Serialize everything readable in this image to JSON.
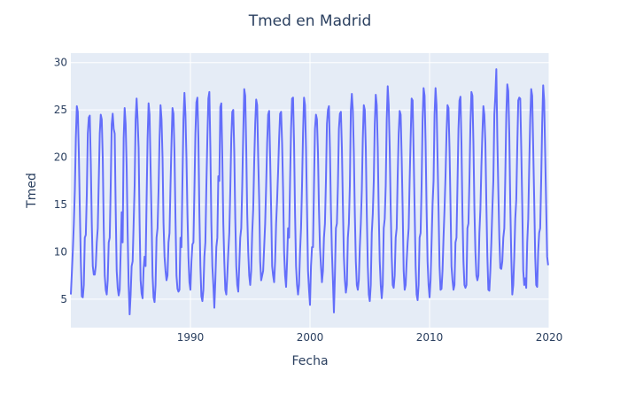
{
  "chart_data": {
    "type": "line",
    "title": "Tmed en Madrid",
    "xlabel": "Fecha",
    "ylabel": "Tmed",
    "x_range": [
      1980.0,
      2020.0
    ],
    "ylim": [
      2.0,
      31.0
    ],
    "x_ticks": [
      1990,
      2000,
      2010,
      2020
    ],
    "y_ticks": [
      5,
      10,
      15,
      20,
      25,
      30
    ],
    "grid": true,
    "legend": "none",
    "colors": {
      "line": "#636efa",
      "plot_background": "#e5ecf6",
      "grid": "#ffffff",
      "text": "#2a3f5f"
    },
    "series": [
      {
        "x": [
          1980.0,
          1980.0833,
          1980.1667,
          1980.25,
          1980.3333,
          1980.4167,
          1980.5,
          1980.5833,
          1980.6667,
          1980.75,
          1980.8333,
          1980.9167,
          1981.0,
          1981.0833,
          1981.1667,
          1981.25,
          1981.3333,
          1981.4167,
          1981.5,
          1981.5833,
          1981.6667,
          1981.75,
          1981.8333,
          1981.9167,
          1982.0,
          1982.0833,
          1982.1667,
          1982.25,
          1982.3333,
          1982.4167,
          1982.5,
          1982.5833,
          1982.6667,
          1982.75,
          1982.8333,
          1982.9167,
          1983.0,
          1983.0833,
          1983.1667,
          1983.25,
          1983.3333,
          1983.4167,
          1983.5,
          1983.5833,
          1983.6667,
          1983.75,
          1983.8333,
          1983.9167,
          1984.0,
          1984.0833,
          1984.1667,
          1984.25,
          1984.3333,
          1984.4167,
          1984.5,
          1984.5833,
          1984.6667,
          1984.75,
          1984.8333,
          1984.9167,
          1985.0,
          1985.0833,
          1985.1667,
          1985.25,
          1985.3333,
          1985.4167,
          1985.5,
          1985.5833,
          1985.6667,
          1985.75,
          1985.8333,
          1985.9167,
          1986.0,
          1986.0833,
          1986.1667,
          1986.25,
          1986.3333,
          1986.4167,
          1986.5,
          1986.5833,
          1986.6667,
          1986.75,
          1986.8333,
          1986.9167,
          1987.0,
          1987.0833,
          1987.1667,
          1987.25,
          1987.3333,
          1987.4167,
          1987.5,
          1987.5833,
          1987.6667,
          1987.75,
          1987.8333,
          1987.9167,
          1988.0,
          1988.0833,
          1988.1667,
          1988.25,
          1988.3333,
          1988.4167,
          1988.5,
          1988.5833,
          1988.6667,
          1988.75,
          1988.8333,
          1988.9167,
          1989.0,
          1989.0833,
          1989.1667,
          1989.25,
          1989.3333,
          1989.4167,
          1989.5,
          1989.5833,
          1989.6667,
          1989.75,
          1989.8333,
          1989.9167,
          1990.0,
          1990.0833,
          1990.1667,
          1990.25,
          1990.3333,
          1990.4167,
          1990.5,
          1990.5833,
          1990.6667,
          1990.75,
          1990.8333,
          1990.9167,
          1991.0,
          1991.0833,
          1991.1667,
          1991.25,
          1991.3333,
          1991.4167,
          1991.5,
          1991.5833,
          1991.6667,
          1991.75,
          1991.8333,
          1991.9167,
          1992.0,
          1992.0833,
          1992.1667,
          1992.25,
          1992.3333,
          1992.4167,
          1992.5,
          1992.5833,
          1992.6667,
          1992.75,
          1992.8333,
          1992.9167,
          1993.0,
          1993.0833,
          1993.1667,
          1993.25,
          1993.3333,
          1993.4167,
          1993.5,
          1993.5833,
          1993.6667,
          1993.75,
          1993.8333,
          1993.9167,
          1994.0,
          1994.0833,
          1994.1667,
          1994.25,
          1994.3333,
          1994.4167,
          1994.5,
          1994.5833,
          1994.6667,
          1994.75,
          1994.8333,
          1994.9167,
          1995.0,
          1995.0833,
          1995.1667,
          1995.25,
          1995.3333,
          1995.4167,
          1995.5,
          1995.5833,
          1995.6667,
          1995.75,
          1995.8333,
          1995.9167,
          1996.0,
          1996.0833,
          1996.1667,
          1996.25,
          1996.3333,
          1996.4167,
          1996.5,
          1996.5833,
          1996.6667,
          1996.75,
          1996.8333,
          1996.9167,
          1997.0,
          1997.0833,
          1997.1667,
          1997.25,
          1997.3333,
          1997.4167,
          1997.5,
          1997.5833,
          1997.6667,
          1997.75,
          1997.8333,
          1997.9167,
          1998.0,
          1998.0833,
          1998.1667,
          1998.25,
          1998.3333,
          1998.4167,
          1998.5,
          1998.5833,
          1998.6667,
          1998.75,
          1998.8333,
          1998.9167,
          1999.0,
          1999.0833,
          1999.1667,
          1999.25,
          1999.3333,
          1999.4167,
          1999.5,
          1999.5833,
          1999.6667,
          1999.75,
          1999.8333,
          1999.9167,
          2000.0,
          2000.0833,
          2000.1667,
          2000.25,
          2000.3333,
          2000.4167,
          2000.5,
          2000.5833,
          2000.6667,
          2000.75,
          2000.8333,
          2000.9167,
          2001.0,
          2001.0833,
          2001.1667,
          2001.25,
          2001.3333,
          2001.4167,
          2001.5,
          2001.5833,
          2001.6667,
          2001.75,
          2001.8333,
          2001.9167,
          2002.0,
          2002.0833,
          2002.1667,
          2002.25,
          2002.3333,
          2002.4167,
          2002.5,
          2002.5833,
          2002.6667,
          2002.75,
          2002.8333,
          2002.9167,
          2003.0,
          2003.0833,
          2003.1667,
          2003.25,
          2003.3333,
          2003.4167,
          2003.5,
          2003.5833,
          2003.6667,
          2003.75,
          2003.8333,
          2003.9167,
          2004.0,
          2004.0833,
          2004.1667,
          2004.25,
          2004.3333,
          2004.4167,
          2004.5,
          2004.5833,
          2004.6667,
          2004.75,
          2004.8333,
          2004.9167,
          2005.0,
          2005.0833,
          2005.1667,
          2005.25,
          2005.3333,
          2005.4167,
          2005.5,
          2005.5833,
          2005.6667,
          2005.75,
          2005.8333,
          2005.9167,
          2006.0,
          2006.0833,
          2006.1667,
          2006.25,
          2006.3333,
          2006.4167,
          2006.5,
          2006.5833,
          2006.6667,
          2006.75,
          2006.8333,
          2006.9167,
          2007.0,
          2007.0833,
          2007.1667,
          2007.25,
          2007.3333,
          2007.4167,
          2007.5,
          2007.5833,
          2007.6667,
          2007.75,
          2007.8333,
          2007.9167,
          2008.0,
          2008.0833,
          2008.1667,
          2008.25,
          2008.3333,
          2008.4167,
          2008.5,
          2008.5833,
          2008.6667,
          2008.75,
          2008.8333,
          2008.9167,
          2009.0,
          2009.0833,
          2009.1667,
          2009.25,
          2009.3333,
          2009.4167,
          2009.5,
          2009.5833,
          2009.6667,
          2009.75,
          2009.8333,
          2009.9167,
          2010.0,
          2010.0833,
          2010.1667,
          2010.25,
          2010.3333,
          2010.4167,
          2010.5,
          2010.5833,
          2010.6667,
          2010.75,
          2010.8333,
          2010.9167,
          2011.0,
          2011.0833,
          2011.1667,
          2011.25,
          2011.3333,
          2011.4167,
          2011.5,
          2011.5833,
          2011.6667,
          2011.75,
          2011.8333,
          2011.9167,
          2012.0,
          2012.0833,
          2012.1667,
          2012.25,
          2012.3333,
          2012.4167,
          2012.5,
          2012.5833,
          2012.6667,
          2012.75,
          2012.8333,
          2012.9167,
          2013.0,
          2013.0833,
          2013.1667,
          2013.25,
          2013.3333,
          2013.4167,
          2013.5,
          2013.5833,
          2013.6667,
          2013.75,
          2013.8333,
          2013.9167,
          2014.0,
          2014.0833,
          2014.1667,
          2014.25,
          2014.3333,
          2014.4167,
          2014.5,
          2014.5833,
          2014.6667,
          2014.75,
          2014.8333,
          2014.9167,
          2015.0,
          2015.0833,
          2015.1667,
          2015.25,
          2015.3333,
          2015.4167,
          2015.5,
          2015.5833,
          2015.6667,
          2015.75,
          2015.8333,
          2015.9167,
          2016.0,
          2016.0833,
          2016.1667,
          2016.25,
          2016.3333,
          2016.4167,
          2016.5,
          2016.5833,
          2016.6667,
          2016.75,
          2016.8333,
          2016.9167,
          2017.0,
          2017.0833,
          2017.1667,
          2017.25,
          2017.3333,
          2017.4167,
          2017.5,
          2017.5833,
          2017.6667,
          2017.75,
          2017.8333,
          2017.9167,
          2018.0,
          2018.0833,
          2018.1667,
          2018.25,
          2018.3333,
          2018.4167,
          2018.5,
          2018.5833,
          2018.6667,
          2018.75,
          2018.8333,
          2018.9167,
          2019.0,
          2019.0833,
          2019.1667,
          2019.25,
          2019.3333,
          2019.4167,
          2019.5,
          2019.5833,
          2019.6667,
          2019.75,
          2019.8333,
          2019.9167
        ],
        "y": [
          5.5,
          7.8,
          10.2,
          13.0,
          16.5,
          22.0,
          25.4,
          24.8,
          20.5,
          14.5,
          9.0,
          5.3,
          5.2,
          6.5,
          11.5,
          11.8,
          16.0,
          22.5,
          24.2,
          24.4,
          19.5,
          13.0,
          8.5,
          7.6,
          7.6,
          8.5,
          11.0,
          12.5,
          17.5,
          22.5,
          24.5,
          24.0,
          20.0,
          12.5,
          7.5,
          6.0,
          5.5,
          7.0,
          11.0,
          11.5,
          17.0,
          23.5,
          24.6,
          23.0,
          22.5,
          14.5,
          8.0,
          6.2,
          5.4,
          6.0,
          10.0,
          14.2,
          11.0,
          22.0,
          25.2,
          23.5,
          19.0,
          12.0,
          6.5,
          3.4,
          5.5,
          8.5,
          9.0,
          13.0,
          17.0,
          24.0,
          26.2,
          24.0,
          21.0,
          13.0,
          7.0,
          5.6,
          5.1,
          8.2,
          9.5,
          8.5,
          15.5,
          22.0,
          25.7,
          24.5,
          19.0,
          13.5,
          7.5,
          5.2,
          4.7,
          6.5,
          11.5,
          12.5,
          16.5,
          22.0,
          25.5,
          24.0,
          20.0,
          13.0,
          9.5,
          8.0,
          7.0,
          7.5,
          11.0,
          12.0,
          17.0,
          21.5,
          25.2,
          24.6,
          20.5,
          13.5,
          7.5,
          6.1,
          5.8,
          6.0,
          11.5,
          10.5,
          17.5,
          24.0,
          26.8,
          24.5,
          20.0,
          14.0,
          9.5,
          6.8,
          6.0,
          9.0,
          10.8,
          11.0,
          16.5,
          22.5,
          25.8,
          26.3,
          22.0,
          14.0,
          8.5,
          5.3,
          4.8,
          6.0,
          9.5,
          11.0,
          17.0,
          22.0,
          26.2,
          26.9,
          21.0,
          13.0,
          8.5,
          6.5,
          4.1,
          7.0,
          10.5,
          11.5,
          18.0,
          17.5,
          25.3,
          25.7,
          20.0,
          13.0,
          9.0,
          6.0,
          5.5,
          7.5,
          10.0,
          12.0,
          16.5,
          22.0,
          24.8,
          25.0,
          20.5,
          13.5,
          8.5,
          6.5,
          5.8,
          8.5,
          11.5,
          12.5,
          17.0,
          22.5,
          27.2,
          26.5,
          21.0,
          14.0,
          10.0,
          7.5,
          6.5,
          8.0,
          12.0,
          14.5,
          19.5,
          23.5,
          26.1,
          25.5,
          20.0,
          15.5,
          9.0,
          7.0,
          7.5,
          8.0,
          10.5,
          13.0,
          17.0,
          21.5,
          24.5,
          24.9,
          20.0,
          14.5,
          8.5,
          7.5,
          6.8,
          9.0,
          13.0,
          15.5,
          18.5,
          22.0,
          24.6,
          24.8,
          21.5,
          16.5,
          10.0,
          7.5,
          6.3,
          9.0,
          12.5,
          11.5,
          17.5,
          23.0,
          26.2,
          26.3,
          21.5,
          14.0,
          8.5,
          6.5,
          5.5,
          6.5,
          10.0,
          12.5,
          17.0,
          22.5,
          26.3,
          25.5,
          21.0,
          14.5,
          8.0,
          6.0,
          4.4,
          8.5,
          10.5,
          10.5,
          17.0,
          23.0,
          24.5,
          24.0,
          20.5,
          14.5,
          10.5,
          8.5,
          6.8,
          8.0,
          11.5,
          13.0,
          17.5,
          23.5,
          25.0,
          25.4,
          21.0,
          14.5,
          10.0,
          7.0,
          3.6,
          7.5,
          12.5,
          13.0,
          17.0,
          23.0,
          24.6,
          24.8,
          21.0,
          15.0,
          9.5,
          7.0,
          5.7,
          6.5,
          11.5,
          13.0,
          17.0,
          25.0,
          26.7,
          25.0,
          20.5,
          14.0,
          9.0,
          6.5,
          6.0,
          7.0,
          10.5,
          13.0,
          16.5,
          22.0,
          25.5,
          25.0,
          21.0,
          14.0,
          8.5,
          5.5,
          4.8,
          6.5,
          12.0,
          14.0,
          17.5,
          23.5,
          26.6,
          25.5,
          21.0,
          14.0,
          9.0,
          6.5,
          5.1,
          6.5,
          12.5,
          13.5,
          17.0,
          24.0,
          27.5,
          25.5,
          21.0,
          14.5,
          9.5,
          6.5,
          6.2,
          7.5,
          11.5,
          12.5,
          18.0,
          22.5,
          24.9,
          24.5,
          20.0,
          14.5,
          8.0,
          6.0,
          6.5,
          9.0,
          11.0,
          12.5,
          17.5,
          22.0,
          26.2,
          26.0,
          20.5,
          14.5,
          8.5,
          5.5,
          4.9,
          6.5,
          11.5,
          12.0,
          17.0,
          24.0,
          27.3,
          26.5,
          21.5,
          14.5,
          9.0,
          6.5,
          5.2,
          7.0,
          11.0,
          15.0,
          17.5,
          24.5,
          27.3,
          25.5,
          20.0,
          14.5,
          8.5,
          6.0,
          6.1,
          8.0,
          11.5,
          14.5,
          18.0,
          22.5,
          25.5,
          25.2,
          21.0,
          15.0,
          8.5,
          7.0,
          6.0,
          6.5,
          11.0,
          11.5,
          17.0,
          23.0,
          26.0,
          26.4,
          21.5,
          14.0,
          9.0,
          6.5,
          6.2,
          6.5,
          12.5,
          13.0,
          17.5,
          23.5,
          26.9,
          26.5,
          21.5,
          14.5,
          10.0,
          7.5,
          7.0,
          7.5,
          12.0,
          14.5,
          19.0,
          22.5,
          25.4,
          24.5,
          21.5,
          15.0,
          9.5,
          6.0,
          5.9,
          8.0,
          11.0,
          14.5,
          17.5,
          24.5,
          26.5,
          29.3,
          22.0,
          16.5,
          11.5,
          8.3,
          8.2,
          9.0,
          11.5,
          12.5,
          18.0,
          24.5,
          27.7,
          27.0,
          22.5,
          15.0,
          9.5,
          5.5,
          6.5,
          9.5,
          13.5,
          15.5,
          21.0,
          26.0,
          26.3,
          26.2,
          21.0,
          15.0,
          8.0,
          6.5,
          7.2,
          6.2,
          11.0,
          13.5,
          19.0,
          24.0,
          27.2,
          26.5,
          21.0,
          15.5,
          9.5,
          6.5,
          6.3,
          10.0,
          12.0,
          12.5,
          17.5,
          23.5,
          27.6,
          26.0,
          20.5,
          15.0,
          9.5,
          8.6
        ]
      }
    ]
  }
}
